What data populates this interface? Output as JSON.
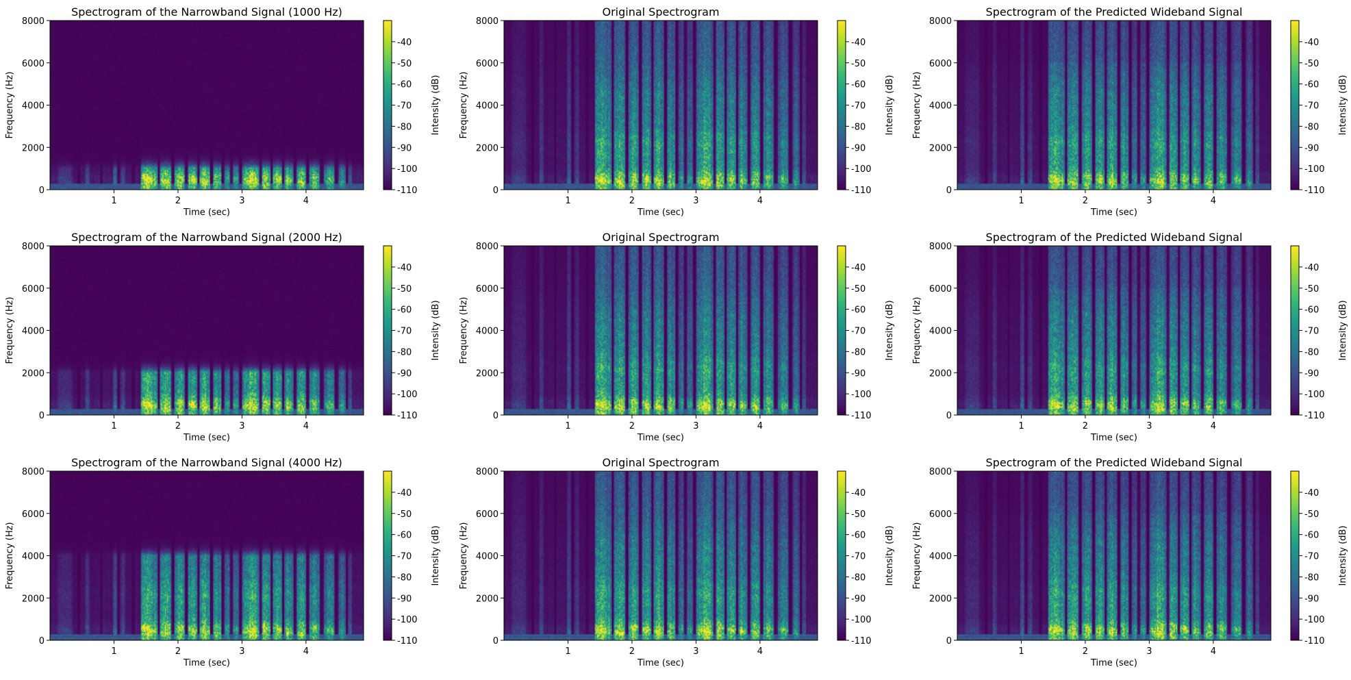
{
  "colormap": [
    "#440154",
    "#482878",
    "#3e4989",
    "#31688e",
    "#26828e",
    "#1f9e89",
    "#35b779",
    "#6ece58",
    "#b5de2b",
    "#fde725"
  ],
  "chart_data": [
    {
      "type": "heatmap",
      "kind": "narrowband",
      "cutoff_hz": 1000,
      "title": "Spectrogram of the Narrowband Signal (1000 Hz)",
      "xlabel": "Time (sec)",
      "ylabel": "Frequency (Hz)",
      "xlim": [
        0,
        4.9
      ],
      "ylim": [
        0,
        8000
      ],
      "xticks": [
        1,
        2,
        3,
        4
      ],
      "yticks": [
        0,
        2000,
        4000,
        6000,
        8000
      ],
      "colorbar": {
        "label": "Intensity (dB)",
        "range": [
          -110,
          -30
        ],
        "ticks": [
          -40,
          -50,
          -60,
          -70,
          -80,
          -90,
          -100,
          -110
        ]
      }
    },
    {
      "type": "heatmap",
      "kind": "original",
      "cutoff_hz": 8000,
      "title": "Original Spectrogram",
      "xlabel": "Time (sec)",
      "ylabel": "Frequency (Hz)",
      "xlim": [
        0,
        4.9
      ],
      "ylim": [
        0,
        8000
      ],
      "xticks": [
        1,
        2,
        3,
        4
      ],
      "yticks": [
        0,
        2000,
        4000,
        6000,
        8000
      ],
      "colorbar": {
        "label": "Intensity (dB)",
        "range": [
          -110,
          -30
        ],
        "ticks": [
          -40,
          -50,
          -60,
          -70,
          -80,
          -90,
          -100,
          -110
        ]
      }
    },
    {
      "type": "heatmap",
      "kind": "predicted",
      "cutoff_hz": 8000,
      "title": "Spectrogram of the Predicted Wideband Signal",
      "xlabel": "Time (sec)",
      "ylabel": "Frequency (Hz)",
      "xlim": [
        0,
        4.9
      ],
      "ylim": [
        0,
        8000
      ],
      "xticks": [
        1,
        2,
        3,
        4
      ],
      "yticks": [
        0,
        2000,
        4000,
        6000,
        8000
      ],
      "colorbar": {
        "label": "Intensity (dB)",
        "range": [
          -110,
          -30
        ],
        "ticks": [
          -40,
          -50,
          -60,
          -70,
          -80,
          -90,
          -100,
          -110
        ]
      }
    },
    {
      "type": "heatmap",
      "kind": "narrowband",
      "cutoff_hz": 2000,
      "title": "Spectrogram of the Narrowband Signal (2000 Hz)",
      "xlabel": "Time (sec)",
      "ylabel": "Frequency (Hz)",
      "xlim": [
        0,
        4.9
      ],
      "ylim": [
        0,
        8000
      ],
      "xticks": [
        1,
        2,
        3,
        4
      ],
      "yticks": [
        0,
        2000,
        4000,
        6000,
        8000
      ],
      "colorbar": {
        "label": "Intensity (dB)",
        "range": [
          -110,
          -30
        ],
        "ticks": [
          -40,
          -50,
          -60,
          -70,
          -80,
          -90,
          -100,
          -110
        ]
      }
    },
    {
      "type": "heatmap",
      "kind": "original",
      "cutoff_hz": 8000,
      "title": "Original Spectrogram",
      "xlabel": "Time (sec)",
      "ylabel": "Frequency (Hz)",
      "xlim": [
        0,
        4.9
      ],
      "ylim": [
        0,
        8000
      ],
      "xticks": [
        1,
        2,
        3,
        4
      ],
      "yticks": [
        0,
        2000,
        4000,
        6000,
        8000
      ],
      "colorbar": {
        "label": "Intensity (dB)",
        "range": [
          -110,
          -30
        ],
        "ticks": [
          -40,
          -50,
          -60,
          -70,
          -80,
          -90,
          -100,
          -110
        ]
      }
    },
    {
      "type": "heatmap",
      "kind": "predicted",
      "cutoff_hz": 8000,
      "title": "Spectrogram of the Predicted Wideband Signal",
      "xlabel": "Time (sec)",
      "ylabel": "Frequency (Hz)",
      "xlim": [
        0,
        4.9
      ],
      "ylim": [
        0,
        8000
      ],
      "xticks": [
        1,
        2,
        3,
        4
      ],
      "yticks": [
        0,
        2000,
        4000,
        6000,
        8000
      ],
      "colorbar": {
        "label": "Intensity (dB)",
        "range": [
          -110,
          -30
        ],
        "ticks": [
          -40,
          -50,
          -60,
          -70,
          -80,
          -90,
          -100,
          -110
        ]
      }
    },
    {
      "type": "heatmap",
      "kind": "narrowband",
      "cutoff_hz": 4000,
      "title": "Spectrogram of the Narrowband Signal (4000 Hz)",
      "xlabel": "Time (sec)",
      "ylabel": "Frequency (Hz)",
      "xlim": [
        0,
        4.9
      ],
      "ylim": [
        0,
        8000
      ],
      "xticks": [
        1,
        2,
        3,
        4
      ],
      "yticks": [
        0,
        2000,
        4000,
        6000,
        8000
      ],
      "colorbar": {
        "label": "Intensity (dB)",
        "range": [
          -110,
          -30
        ],
        "ticks": [
          -40,
          -50,
          -60,
          -70,
          -80,
          -90,
          -100,
          -110
        ]
      }
    },
    {
      "type": "heatmap",
      "kind": "original",
      "cutoff_hz": 8000,
      "title": "Original Spectrogram",
      "xlabel": "Time (sec)",
      "ylabel": "Frequency (Hz)",
      "xlim": [
        0,
        4.9
      ],
      "ylim": [
        0,
        8000
      ],
      "xticks": [
        1,
        2,
        3,
        4
      ],
      "yticks": [
        0,
        2000,
        4000,
        6000,
        8000
      ],
      "colorbar": {
        "label": "Intensity (dB)",
        "range": [
          -110,
          -30
        ],
        "ticks": [
          -40,
          -50,
          -60,
          -70,
          -80,
          -90,
          -100,
          -110
        ]
      }
    },
    {
      "type": "heatmap",
      "kind": "predicted",
      "cutoff_hz": 8000,
      "title": "Spectrogram of the Predicted Wideband Signal",
      "xlabel": "Time (sec)",
      "ylabel": "Frequency (Hz)",
      "xlim": [
        0,
        4.9
      ],
      "ylim": [
        0,
        8000
      ],
      "xticks": [
        1,
        2,
        3,
        4
      ],
      "yticks": [
        0,
        2000,
        4000,
        6000,
        8000
      ],
      "colorbar": {
        "label": "Intensity (dB)",
        "range": [
          -110,
          -30
        ],
        "ticks": [
          -40,
          -50,
          -60,
          -70,
          -80,
          -90,
          -100,
          -110
        ]
      }
    }
  ]
}
